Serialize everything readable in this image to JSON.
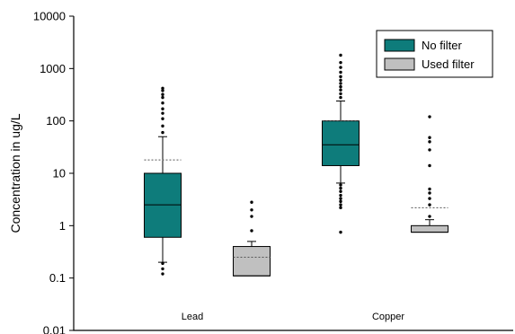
{
  "chart_data": {
    "type": "box",
    "title": "",
    "xlabel": "",
    "ylabel": "Concentration in ug/L",
    "y_scale": "log",
    "ylim": [
      0.01,
      10000
    ],
    "y_ticks": [
      "0.01",
      "0.1",
      "1",
      "10",
      "100",
      "1000",
      "10000"
    ],
    "grid": false,
    "legend_position": "top-right",
    "categories": [
      "Lead",
      "Copper"
    ],
    "series": [
      {
        "name": "No filter",
        "color": "#0e7c7b",
        "boxes": [
          {
            "category": "Lead",
            "q1": 0.6,
            "median": 2.5,
            "q3": 10,
            "whisker_low": 0.2,
            "whisker_high": 50,
            "mean": 18,
            "outliers": [
              0.12,
              0.15,
              0.19,
              60,
              80,
              110,
              140,
              170,
              220,
              280,
              320,
              380,
              420
            ]
          },
          {
            "category": "Copper",
            "q1": 14,
            "median": 35,
            "q3": 100,
            "whisker_low": 6.5,
            "whisker_high": 240,
            "mean": 100,
            "outliers": [
              0.75,
              2.2,
              2.5,
              2.9,
              3.3,
              3.8,
              4.5,
              5.2,
              6,
              280,
              330,
              390,
              450,
              520,
              600,
              700,
              850,
              1050,
              1300,
              1800
            ]
          }
        ]
      },
      {
        "name": "Used filter",
        "color": "#c0c0c0",
        "boxes": [
          {
            "category": "Lead",
            "q1": 0.11,
            "median": 0.11,
            "q3": 0.4,
            "whisker_low": 0.11,
            "whisker_high": 0.5,
            "mean": 0.25,
            "outliers": [
              0.8,
              1.5,
              2.0,
              2.8
            ]
          },
          {
            "category": "Copper",
            "q1": 0.75,
            "median": 0.75,
            "q3": 1.0,
            "whisker_low": 0.75,
            "whisker_high": 1.3,
            "mean": 2.2,
            "outliers": [
              1.5,
              2.5,
              3.3,
              4.2,
              5,
              14,
              28,
              40,
              48,
              120
            ]
          }
        ]
      }
    ]
  }
}
